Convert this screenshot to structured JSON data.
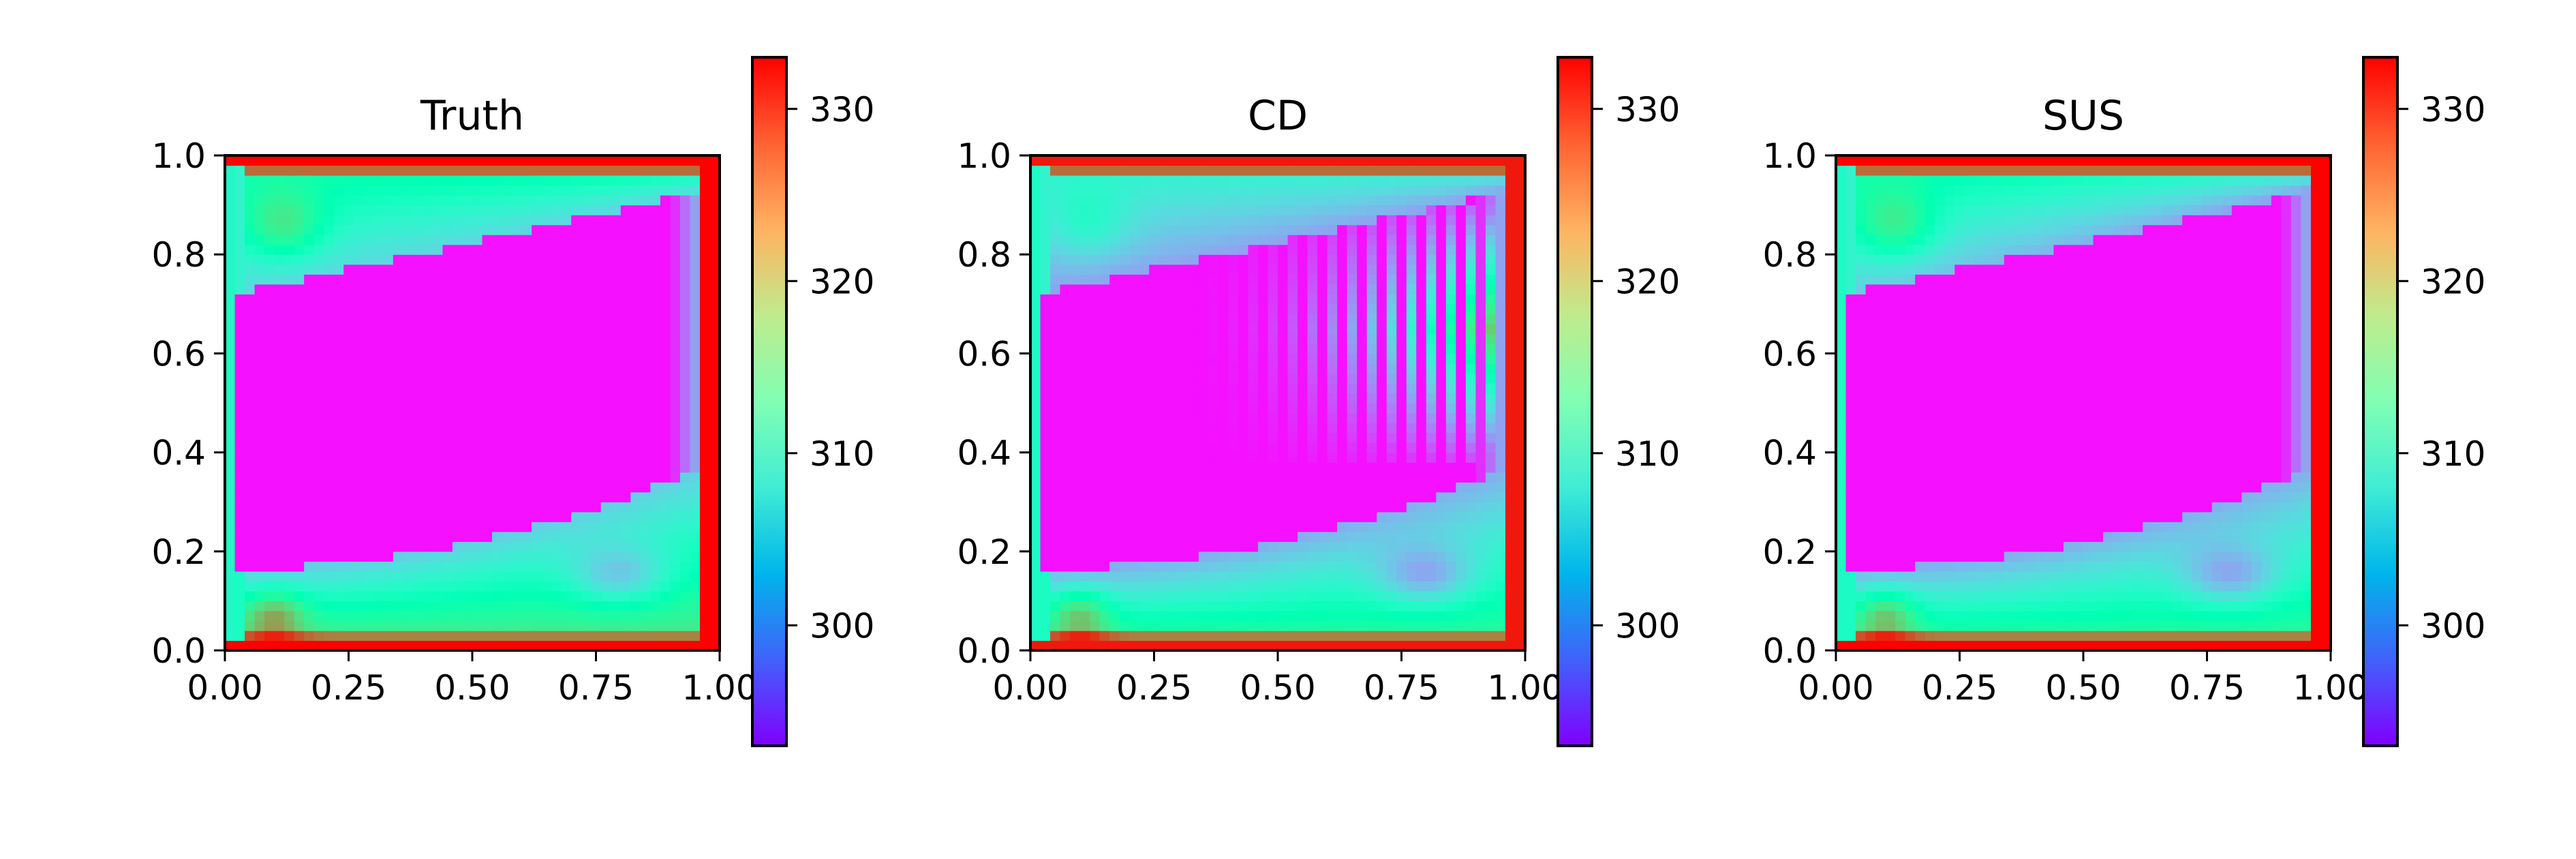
{
  "chart_data": [
    {
      "type": "heatmap",
      "title": "Truth",
      "xlim": [
        0,
        1
      ],
      "ylim": [
        0,
        1
      ],
      "xticks": [
        "0.00",
        "0.25",
        "0.50",
        "0.75",
        "1.00"
      ],
      "yticks": [
        "0.0",
        "0.2",
        "0.4",
        "0.6",
        "0.8",
        "1.0"
      ],
      "colormap": "rainbow",
      "colorbar": {
        "range": [
          293,
          333
        ],
        "ticks": [
          "300",
          "310",
          "320",
          "330"
        ]
      },
      "grid": false
    },
    {
      "type": "heatmap",
      "title": "CD",
      "xlim": [
        0,
        1
      ],
      "ylim": [
        0,
        1
      ],
      "xticks": [
        "0.00",
        "0.25",
        "0.50",
        "0.75",
        "1.00"
      ],
      "yticks": [
        "0.0",
        "0.2",
        "0.4",
        "0.6",
        "0.8",
        "1.0"
      ],
      "colormap": "rainbow",
      "colorbar": {
        "range": [
          293,
          333
        ],
        "ticks": [
          "300",
          "310",
          "320",
          "330"
        ]
      },
      "grid": false
    },
    {
      "type": "heatmap",
      "title": "SUS",
      "xlim": [
        0,
        1
      ],
      "ylim": [
        0,
        1
      ],
      "xticks": [
        "0.00",
        "0.25",
        "0.50",
        "0.75",
        "1.00"
      ],
      "yticks": [
        "0.0",
        "0.2",
        "0.4",
        "0.6",
        "0.8",
        "1.0"
      ],
      "colormap": "rainbow",
      "colorbar": {
        "range": [
          293,
          333
        ],
        "ticks": [
          "300",
          "310",
          "320",
          "330"
        ]
      },
      "grid": false
    }
  ]
}
